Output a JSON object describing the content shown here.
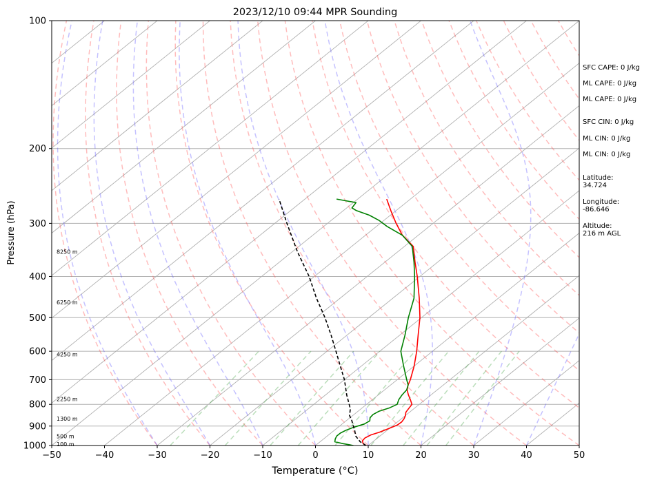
{
  "chart_data": {
    "type": "line",
    "title": "2023/12/10 09:44 MPR Sounding",
    "xlabel": "Temperature (°C)",
    "ylabel": "Pressure (hPa)",
    "xlim": [
      -50,
      50
    ],
    "ylim": [
      1000,
      100
    ],
    "y_scale": "log",
    "skew": true,
    "grid": true,
    "x_ticks": [
      "−50",
      "−40",
      "−30",
      "−20",
      "−10",
      "0",
      "10",
      "20",
      "30",
      "40",
      "50"
    ],
    "y_ticks": [
      "100",
      "200",
      "300",
      "400",
      "500",
      "600",
      "700",
      "800",
      "900",
      "1000"
    ],
    "height_labels": [
      {
        "text": "100 m",
        "p": 992
      },
      {
        "text": "500 m",
        "p": 950
      },
      {
        "text": "1300 m",
        "p": 865
      },
      {
        "text": "2250 m",
        "p": 778
      },
      {
        "text": "4250 m",
        "p": 610
      },
      {
        "text": "6250 m",
        "p": 460
      },
      {
        "text": "8250 m",
        "p": 350
      }
    ],
    "series": [
      {
        "color": "#ff0000",
        "points": [
          [
            1000,
            9.6
          ],
          [
            990,
            8.6
          ],
          [
            975,
            7.8
          ],
          [
            960,
            7.6
          ],
          [
            945,
            8.0
          ],
          [
            930,
            9.0
          ],
          [
            910,
            10.0
          ],
          [
            895,
            10.7
          ],
          [
            880,
            10.8
          ],
          [
            865,
            10.5
          ],
          [
            850,
            10.0
          ],
          [
            835,
            9.3
          ],
          [
            820,
            9.0
          ],
          [
            800,
            8.6
          ],
          [
            780,
            7.2
          ],
          [
            760,
            5.7
          ],
          [
            740,
            4.3
          ],
          [
            720,
            3.3
          ],
          [
            700,
            2.5
          ],
          [
            650,
            0.0
          ],
          [
            600,
            -3.0
          ],
          [
            550,
            -6.5
          ],
          [
            500,
            -10.3
          ],
          [
            450,
            -15.0
          ],
          [
            400,
            -20.5
          ],
          [
            370,
            -24.3
          ],
          [
            340,
            -28.3
          ],
          [
            320,
            -33.0
          ],
          [
            300,
            -37.0
          ],
          [
            280,
            -41.0
          ],
          [
            263,
            -44.5
          ]
        ]
      },
      {
        "color": "#008000",
        "points": [
          [
            1000,
            7.2
          ],
          [
            990,
            4.8
          ],
          [
            980,
            2.8
          ],
          [
            965,
            2.2
          ],
          [
            950,
            1.8
          ],
          [
            935,
            1.8
          ],
          [
            920,
            2.2
          ],
          [
            905,
            3.0
          ],
          [
            890,
            4.2
          ],
          [
            875,
            4.5
          ],
          [
            860,
            3.8
          ],
          [
            845,
            3.6
          ],
          [
            830,
            4.0
          ],
          [
            815,
            5.2
          ],
          [
            800,
            5.8
          ],
          [
            780,
            5.0
          ],
          [
            760,
            4.5
          ],
          [
            740,
            4.2
          ],
          [
            720,
            3.3
          ],
          [
            700,
            1.8
          ],
          [
            650,
            -2.0
          ],
          [
            600,
            -6.0
          ],
          [
            550,
            -9.0
          ],
          [
            500,
            -12.5
          ],
          [
            450,
            -16.0
          ],
          [
            400,
            -21.0
          ],
          [
            370,
            -24.5
          ],
          [
            340,
            -28.5
          ],
          [
            320,
            -33.0
          ],
          [
            305,
            -38.0
          ],
          [
            295,
            -41.0
          ],
          [
            287,
            -44.0
          ],
          [
            280,
            -47.5
          ],
          [
            276,
            -49.0
          ],
          [
            268,
            -49.5
          ],
          [
            263,
            -54.0
          ]
        ]
      },
      {
        "color": "#000000",
        "dashed": true,
        "points": [
          [
            1000,
            9.6
          ],
          [
            980,
            7.6
          ],
          [
            950,
            5.4
          ],
          [
            920,
            3.8
          ],
          [
            900,
            2.6
          ],
          [
            870,
            0.8
          ],
          [
            850,
            -0.6
          ],
          [
            820,
            -2.0
          ],
          [
            800,
            -3.3
          ],
          [
            760,
            -6.0
          ],
          [
            700,
            -10.0
          ],
          [
            650,
            -14.0
          ],
          [
            600,
            -18.3
          ],
          [
            550,
            -23.0
          ],
          [
            500,
            -28.3
          ],
          [
            450,
            -34.5
          ],
          [
            400,
            -41.0
          ],
          [
            350,
            -49.0
          ],
          [
            300,
            -57.7
          ],
          [
            263,
            -64.9
          ]
        ]
      }
    ]
  },
  "side_info": {
    "sfc_cape": "SFC CAPE: 0 J/kg",
    "ml_cape_1": "ML CAPE: 0 J/kg",
    "ml_cape_2": "ML CAPE: 0 J/kg",
    "sfc_cin": "SFC CIN: 0 J/kg",
    "ml_cin_1": "ML CIN: 0 J/kg",
    "ml_cin_2": "ML CIN: 0 J/kg",
    "latitude_label": "Latitude:",
    "latitude_value": "34.724",
    "longitude_label": "Longitude:",
    "longitude_value": "-86.646",
    "altitude_label": "Altitude:",
    "altitude_value": "216 m AGL"
  }
}
